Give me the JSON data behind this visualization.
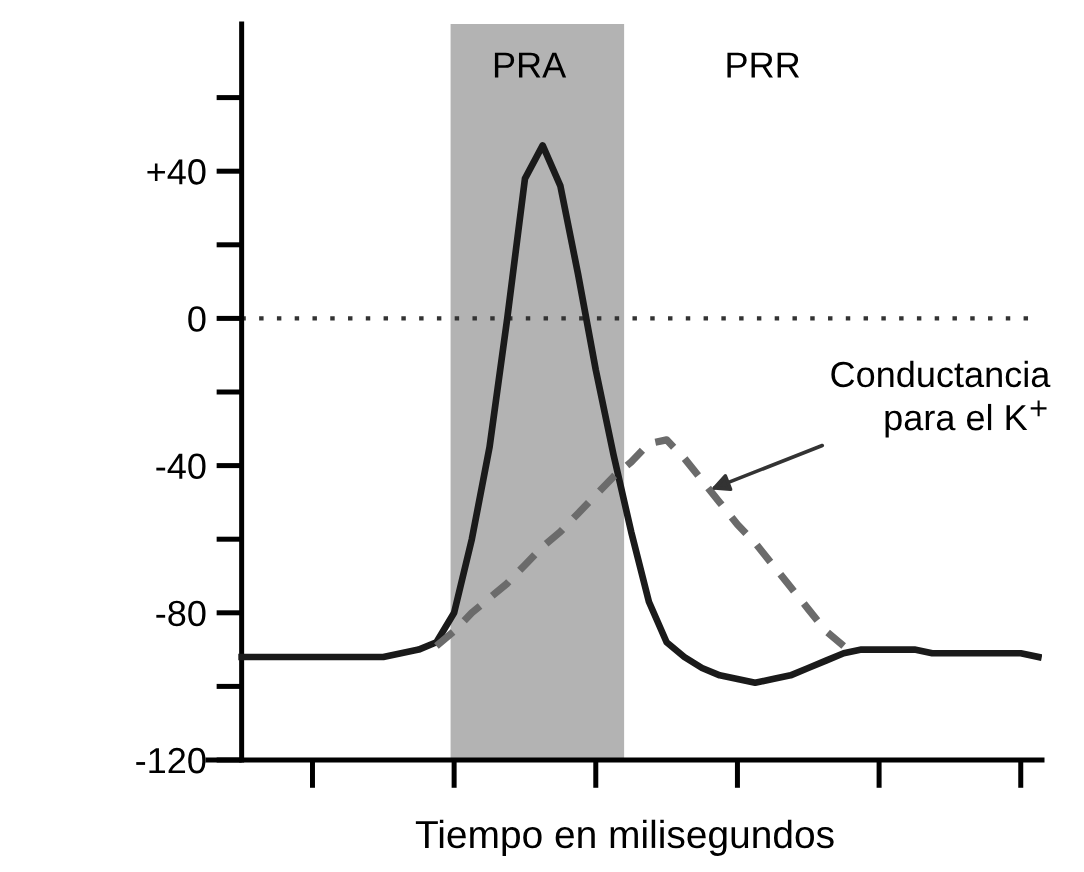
{
  "chart_data": {
    "type": "line",
    "xlabel": "Tiempo en milisegundos",
    "categories": [
      null,
      null,
      null,
      null,
      null,
      null,
      null,
      null,
      null,
      null,
      null,
      null,
      null,
      null,
      null,
      null,
      null,
      null,
      null,
      null,
      null,
      null,
      null,
      null,
      null,
      null,
      null,
      null,
      null,
      null,
      null,
      null,
      null,
      null,
      null,
      null,
      null,
      null,
      null,
      null,
      null,
      null,
      null,
      null,
      null,
      null
    ],
    "series": [
      {
        "color": "#1a1a1a",
        "line_style": "solid",
        "values": [
          -92,
          -92,
          -92,
          -92,
          -92,
          -92,
          -92,
          -92,
          -92,
          -91,
          -90,
          -88,
          -80,
          -60,
          -35,
          0,
          38,
          47,
          36,
          12,
          -14,
          -37,
          -58,
          -77,
          -88,
          -92,
          -95,
          -97,
          -98,
          -99,
          -98,
          -97,
          -95,
          -93,
          -91,
          -90,
          -90,
          -90,
          -90,
          -91,
          -91,
          -91,
          -91,
          -91,
          -91,
          -92
        ]
      },
      {
        "name": "Conductancia para el K$^{+}$",
        "color": "#6b6b6b",
        "line_style": "dashed",
        "values": [
          null,
          null,
          null,
          null,
          null,
          null,
          null,
          null,
          null,
          null,
          null,
          -89,
          -85,
          -80,
          -76,
          -72,
          -67,
          -62,
          -58,
          -53,
          -48,
          -43,
          -39,
          -34,
          -33,
          -38,
          -44,
          -50,
          -56,
          -61,
          -67,
          -73,
          -79,
          -85,
          -89,
          null,
          null,
          null,
          null,
          null,
          null,
          null,
          null,
          null,
          null,
          null
        ]
      }
    ],
    "ylim": [
      -120,
      80
    ],
    "yticks": [
      {
        "value": 60,
        "label": null
      },
      {
        "value": 40,
        "label": "+40"
      },
      {
        "value": 20,
        "label": null
      },
      0,
      {
        "value": -20,
        "label": null
      },
      -40,
      {
        "value": -60,
        "label": null
      },
      -80,
      {
        "value": -100,
        "label": null
      },
      -120
    ],
    "ref_lines": [
      {
        "axis": "y",
        "value": 0,
        "color": "#333333",
        "line_style": "dotted"
      }
    ],
    "annotations": [
      "PRA",
      "PRR"
    ],
    "legend": false,
    "grid": false,
    "marker": "none"
  }
}
